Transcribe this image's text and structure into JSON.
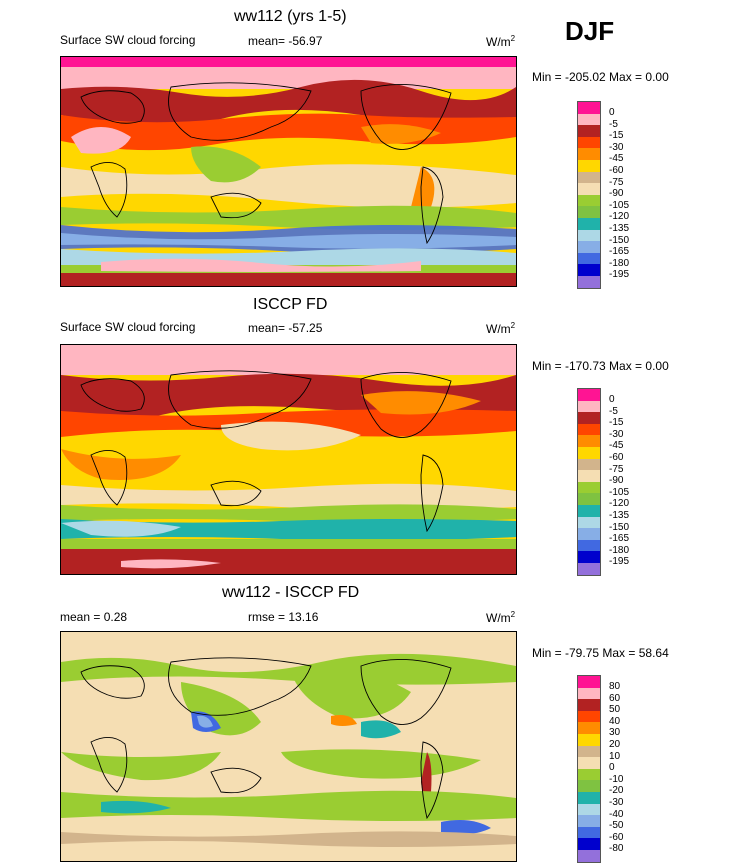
{
  "season": "DJF",
  "panels": [
    {
      "title": "ww112 (yrs 1-5)",
      "left_label": "Surface SW cloud forcing",
      "mean_label": "mean= -56.97",
      "units": "W/m",
      "units_sup": "2",
      "minmax": "Min = -205.02 Max =   0.00",
      "colorbar": {
        "colors": [
          "#ff1493",
          "#ffb6c1",
          "#b22222",
          "#ff4500",
          "#ff8c00",
          "#ffd700",
          "#d2b48c",
          "#f5deb3",
          "#9acd32",
          "#7fc241",
          "#20b2aa",
          "#add8e6",
          "#87aee6",
          "#4169e1",
          "#0000cd",
          "#9370db"
        ],
        "labels": [
          "0",
          "-5",
          "-15",
          "-30",
          "-45",
          "-60",
          "-75",
          "-90",
          "-105",
          "-120",
          "-135",
          "-150",
          "-165",
          "-180",
          "-195"
        ]
      }
    },
    {
      "title": "ISCCP FD",
      "left_label": "Surface SW cloud forcing",
      "mean_label": "mean= -57.25",
      "units": "W/m",
      "units_sup": "2",
      "minmax": "Min = -170.73 Max =   0.00",
      "colorbar": {
        "colors": [
          "#ff1493",
          "#ffb6c1",
          "#b22222",
          "#ff4500",
          "#ff8c00",
          "#ffd700",
          "#d2b48c",
          "#f5deb3",
          "#9acd32",
          "#7fc241",
          "#20b2aa",
          "#add8e6",
          "#87aee6",
          "#4169e1",
          "#0000cd",
          "#9370db"
        ],
        "labels": [
          "0",
          "-5",
          "-15",
          "-30",
          "-45",
          "-60",
          "-75",
          "-90",
          "-105",
          "-120",
          "-135",
          "-150",
          "-165",
          "-180",
          "-195"
        ]
      }
    },
    {
      "title": "ww112 - ISCCP FD",
      "left_label": "mean =   0.28",
      "mean_label": "rmse =  13.16",
      "units": "W/m",
      "units_sup": "2",
      "minmax": "Min = -79.75 Max =  58.64",
      "colorbar": {
        "colors": [
          "#ff1493",
          "#ffb6c1",
          "#b22222",
          "#ff4500",
          "#ff8c00",
          "#ffd700",
          "#d2b48c",
          "#f5deb3",
          "#9acd32",
          "#7fc241",
          "#20b2aa",
          "#add8e6",
          "#87aee6",
          "#4169e1",
          "#0000cd",
          "#9370db"
        ],
        "labels": [
          "80",
          "60",
          "50",
          "40",
          "30",
          "20",
          "10",
          "0",
          "-10",
          "-20",
          "-30",
          "-40",
          "-50",
          "-60",
          "-80"
        ]
      }
    }
  ]
}
